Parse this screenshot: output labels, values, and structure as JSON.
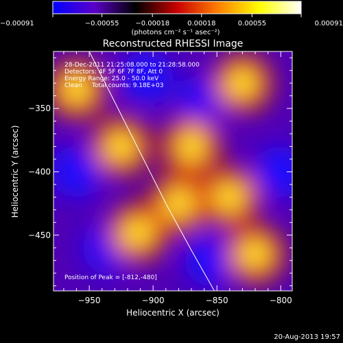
{
  "chart_data": {
    "type": "heatmap",
    "title": "Reconstructed RHESSI Image",
    "xlabel": "Heliocentric X (arcsec)",
    "ylabel": "Heliocentric Y (arcsec)",
    "xlim": [
      -978,
      -791
    ],
    "ylim": [
      -494,
      -305
    ],
    "x_ticks": [
      -950,
      -900,
      -850,
      -800
    ],
    "y_ticks": [
      -350,
      -400,
      -450
    ],
    "x_tick_labels": [
      "−950",
      "−900",
      "−850",
      "−800"
    ],
    "y_tick_labels": [
      "−350",
      "−400",
      "−450"
    ],
    "colorbar": {
      "min": -0.00091,
      "max": 0.00091,
      "ticks": [
        -0.00091,
        -0.00055,
        -0.00018,
        0.00018,
        0.00055,
        0.00091
      ],
      "tick_labels": [
        "−0.00091",
        "−0.00055",
        "−0.00018",
        "0.00018",
        "0.00055",
        "0.00091"
      ],
      "units": "(photons cm⁻² s⁻¹ asec⁻²)",
      "colors": [
        "#0000ff",
        "#5a00c8",
        "#000000",
        "#c80000",
        "#ff8000",
        "#ffff00",
        "#ffffff"
      ]
    },
    "annotations": [
      "28-Dec-2011 21:25:08.000 to 21:28:58.000",
      "Detectors: 4F 5F 6F 7F 8F, Att 0",
      "Energy Range: 25.0 - 50.0 keV",
      "Clean     Total counts: 9.18E+03"
    ],
    "peak_label": "Position of Peak = [-812,-480]",
    "peak": [
      -812,
      -480
    ],
    "limb_curve": [
      [
        -950,
        -305
      ],
      [
        -930,
        -345
      ],
      [
        -910,
        -385
      ],
      [
        -890,
        -425
      ],
      [
        -870,
        -462
      ],
      [
        -852,
        -494
      ]
    ],
    "maxima": [
      [
        -960,
        -335
      ],
      [
        -925,
        -380
      ],
      [
        -880,
        -425
      ],
      [
        -820,
        -465
      ],
      [
        -912,
        -448
      ],
      [
        -870,
        -380
      ],
      [
        -830,
        -330
      ],
      [
        -840,
        -420
      ]
    ],
    "minima": [
      [
        -860,
        -345
      ],
      [
        -905,
        -325
      ],
      [
        -960,
        -400
      ],
      [
        -935,
        -460
      ],
      [
        -800,
        -400
      ],
      [
        -855,
        -470
      ]
    ]
  },
  "footer": {
    "timestamp": "20-Aug-2013 19:57"
  }
}
